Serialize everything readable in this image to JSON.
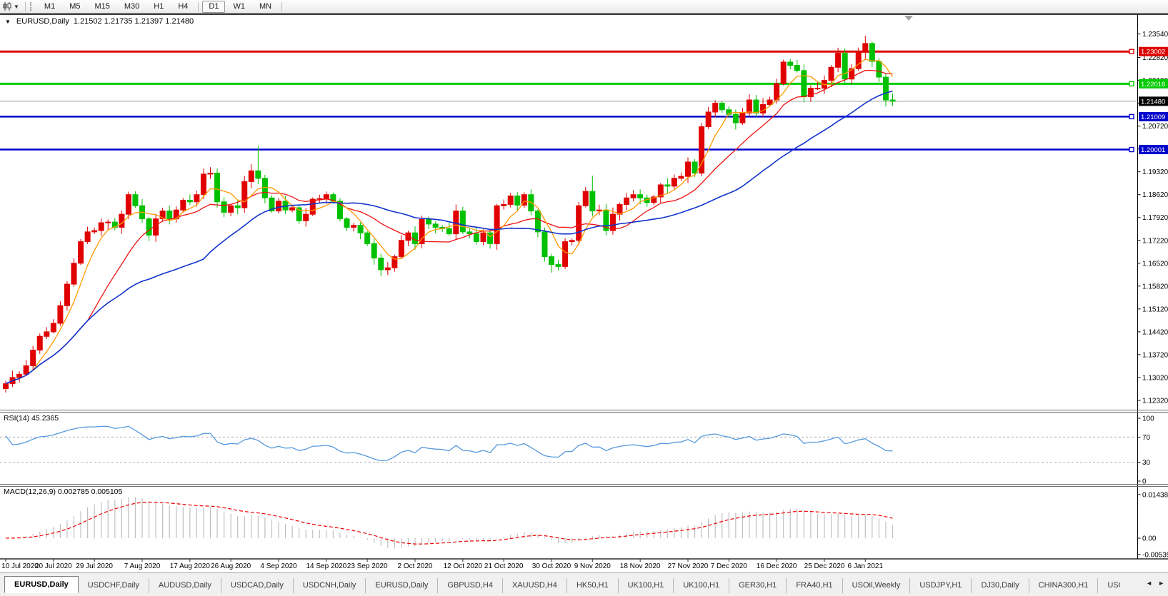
{
  "toolbar": {
    "chart_type_icon": "candlestick-chart-icon",
    "timeframes": [
      "M1",
      "M5",
      "M15",
      "M30",
      "H1",
      "H4",
      "D1",
      "W1",
      "MN"
    ],
    "active_timeframe": "D1"
  },
  "chart": {
    "symbol_label": "EURUSD,Daily",
    "ohlc_label": "1.21502 1.21735 1.21397 1.21480",
    "quote": {
      "open": "1.21502",
      "high": "1.21735",
      "low": "1.21397",
      "close": "1.21480"
    }
  },
  "indicators": {
    "rsi": {
      "label": "RSI(14) 45.2365",
      "period": 14,
      "value": "45.2365",
      "levels": [
        "100",
        "70",
        "30",
        "0"
      ],
      "level_lines": [
        70,
        30
      ],
      "line_color": "#5599dd"
    },
    "macd": {
      "label": "MACD(12,26,9) 0.002785 0.005105",
      "params": [
        12,
        26,
        9
      ],
      "values": [
        "0.002785",
        "0.005105"
      ],
      "axis_labels": [
        "0.014384",
        "0.00",
        "-0.005396"
      ],
      "axis_values": [
        0.014384,
        0,
        -0.005396
      ],
      "histogram_color": "#bfbfbf",
      "signal_color": "#ee0000"
    }
  },
  "tabs": {
    "items": [
      "EURUSD,Daily",
      "USDCHF,Daily",
      "AUDUSD,Daily",
      "USDCAD,Daily",
      "USDCNH,Daily",
      "EURUSD,Daily",
      "GBPUSD,H4",
      "XAUUSD,H4",
      "HK50,H1",
      "UK100,H1",
      "UK100,H1",
      "GER30,H1",
      "FRA40,H1",
      "USOil,Weekly",
      "USDJPY,H1",
      "DJ30,Daily",
      "CHINA300,H1",
      "USOil,Weekly"
    ],
    "active_index": 0,
    "scroll_arrows": [
      "◄",
      "►"
    ]
  },
  "chart_data": {
    "type": "candlestick",
    "symbol": "EURUSD",
    "timeframe": "Daily",
    "colors": {
      "up": "#e00000",
      "down": "#00c000",
      "ma_fast": "#ff9900",
      "ma_mid": "#ee1111",
      "ma_slow": "#1133cc",
      "current_line": "#b4b4b4",
      "current_badge": "#000000"
    },
    "ma_periods": {
      "fast": 5,
      "mid": 13,
      "slow": 30
    },
    "first_open": 1.1268,
    "closes": [
      1.1283,
      1.1302,
      1.1312,
      1.1338,
      1.1386,
      1.1428,
      1.1442,
      1.1468,
      1.1522,
      1.1588,
      1.1652,
      1.1718,
      1.1748,
      1.1752,
      1.1776,
      1.1778,
      1.1762,
      1.1802,
      1.1862,
      1.1828,
      1.1788,
      1.1738,
      1.1788,
      1.1812,
      1.1788,
      1.1815,
      1.1845,
      1.184,
      1.1862,
      1.1925,
      1.1928,
      1.184,
      1.1808,
      1.1828,
      1.1822,
      1.1902,
      1.1935,
      1.1912,
      1.1852,
      1.1812,
      1.1842,
      1.1815,
      1.1822,
      1.1782,
      1.1802,
      1.1848,
      1.185,
      1.1862,
      1.1842,
      1.1788,
      1.1762,
      1.1768,
      1.1745,
      1.1712,
      1.1668,
      1.1632,
      1.1638,
      1.1672,
      1.1722,
      1.1745,
      1.1712,
      1.1786,
      1.1772,
      1.1762,
      1.1758,
      1.1742,
      1.1812,
      1.1748,
      1.1742,
      1.1718,
      1.1745,
      1.1712,
      1.1828,
      1.1832,
      1.1858,
      1.183,
      1.1862,
      1.1812,
      1.1748,
      1.1672,
      1.1648,
      1.1642,
      1.1718,
      1.1722,
      1.1828,
      1.1872,
      1.1812,
      1.1815,
      1.1752,
      1.1802,
      1.1832,
      1.1852,
      1.1862,
      1.1852,
      1.1838,
      1.1855,
      1.1892,
      1.1888,
      1.1912,
      1.1918,
      1.1962,
      1.1928,
      1.207,
      1.2115,
      1.2142,
      1.2122,
      1.2108,
      1.2082,
      1.2112,
      1.2152,
      1.2112,
      1.2138,
      1.2152,
      1.2202,
      1.2268,
      1.2258,
      1.2242,
      1.2162,
      1.2188,
      1.2188,
      1.2212,
      1.2252,
      1.2295,
      1.2216,
      1.2248,
      1.2298,
      1.2325,
      1.227,
      1.2222,
      1.2152,
      1.2148
    ],
    "wick_overrides": {
      "0": {
        "low": 1.1256
      },
      "37": {
        "high": 1.2011
      },
      "55": {
        "low": 1.1612
      },
      "80": {
        "low": 1.1623
      },
      "86": {
        "high": 1.192,
        "low": 1.1795
      },
      "126": {
        "high": 1.2349
      },
      "129": {
        "low": 1.2132
      }
    },
    "price_axis_ticks": [
      "1.23540",
      "1.22820",
      "1.22120",
      "1.21420",
      "1.20720",
      "1.20020",
      "1.19320",
      "1.18620",
      "1.17920",
      "1.17220",
      "1.16520",
      "1.15820",
      "1.15120",
      "1.14420",
      "1.13720",
      "1.13020",
      "1.12320"
    ],
    "hlines": [
      {
        "price": 1.23002,
        "label": "1.23002",
        "color": "#dd0000",
        "width": 3
      },
      {
        "price": 1.22016,
        "label": "1.22016",
        "color": "#00cc00",
        "width": 3
      },
      {
        "price": 1.21009,
        "label": "1.21009",
        "color": "#0000cc",
        "width": 2.5
      },
      {
        "price": 1.20001,
        "label": "1.20001",
        "color": "#0000cc",
        "width": 2.5
      }
    ],
    "current_price": {
      "value": 1.2148,
      "label": "1.21480"
    },
    "date_labels": [
      "10 Jul 2020",
      "20 Jul 2020",
      "29 Jul 2020",
      "7 Aug 2020",
      "17 Aug 2020",
      "26 Aug 2020",
      "4 Sep 2020",
      "14 Sep 2020",
      "23 Sep 2020",
      "2 Oct 2020",
      "12 Oct 2020",
      "21 Oct 2020",
      "30 Oct 2020",
      "9 Nov 2020",
      "18 Nov 2020",
      "27 Nov 2020",
      "7 Dec 2020",
      "16 Dec 2020",
      "25 Dec 2020",
      "6 Jan 2021"
    ]
  }
}
